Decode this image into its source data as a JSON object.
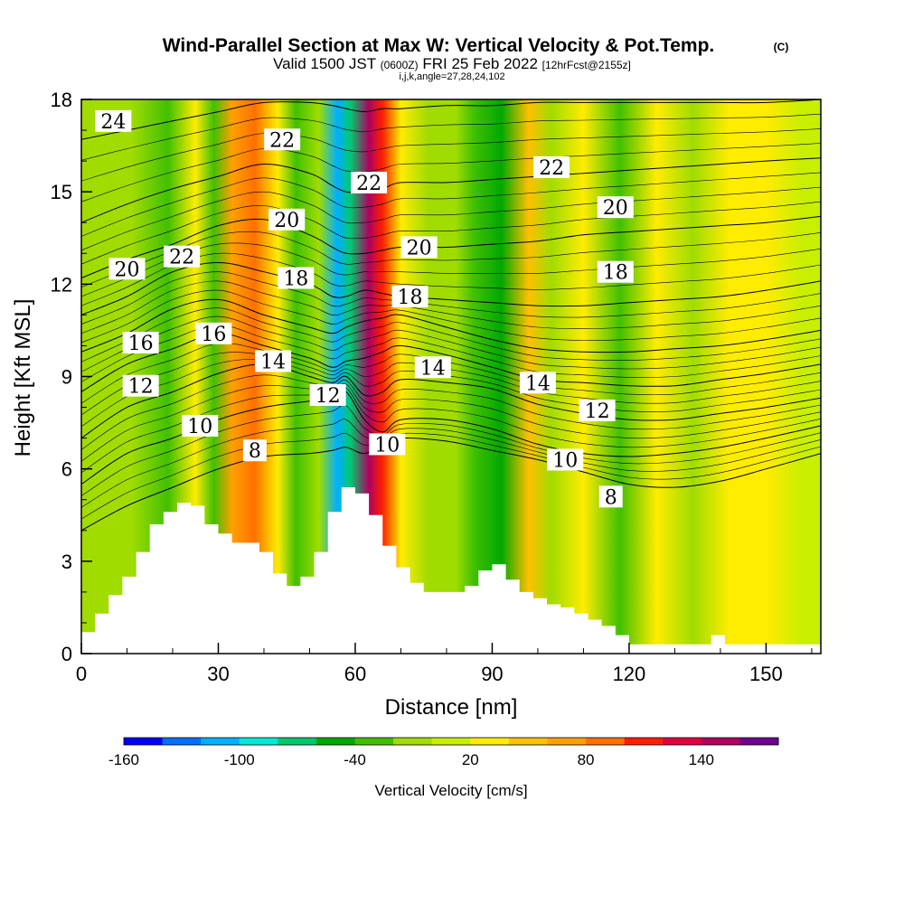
{
  "chart_data": {
    "type": "heatmap",
    "title": "Wind-Parallel Section at Max W: Vertical Velocity & Pot.Temp.",
    "title_mark": "(C)",
    "subtitle_valid": "Valid 1500 JST",
    "subtitle_zulu": "(0600Z)",
    "subtitle_date": "FRI 25 Feb 2022",
    "subtitle_fcst": "[12hrFcst@2155z]",
    "subtitle_indices": "i,j,k,angle=27,28,24,102",
    "xlabel": "Distance [nm]",
    "ylabel": "Height [Kft MSL]",
    "xlim": [
      0,
      162
    ],
    "ylim": [
      0,
      18
    ],
    "x_ticks": [
      "0",
      "30",
      "60",
      "90",
      "120",
      "150"
    ],
    "x_tick_values": [
      0,
      30,
      60,
      90,
      120,
      150
    ],
    "y_ticks": [
      "0",
      "3",
      "6",
      "9",
      "12",
      "15",
      "18"
    ],
    "y_tick_values": [
      0,
      3,
      6,
      9,
      12,
      15,
      18
    ],
    "colorbar": {
      "label": "Vertical Velocity [cm/s]",
      "tick_labels": [
        "-160",
        "-100",
        "-40",
        "20",
        "80",
        "140"
      ],
      "tick_values": [
        -160,
        -100,
        -40,
        20,
        80,
        140
      ],
      "bins": [
        -160,
        -140,
        -120,
        -100,
        -80,
        -60,
        -40,
        -20,
        0,
        20,
        40,
        60,
        80,
        100,
        120,
        140,
        160
      ],
      "colors": [
        "#0000ff",
        "#0070ff",
        "#00b0ff",
        "#00e8d8",
        "#00c86c",
        "#00a800",
        "#40c000",
        "#a0dc00",
        "#c8ee00",
        "#ffec00",
        "#ffc000",
        "#ffa000",
        "#ff7000",
        "#ff2000",
        "#e00040",
        "#b00060",
        "#700090"
      ]
    },
    "vertical_velocity_bands": [
      {
        "x": 3,
        "w": -5
      },
      {
        "x": 11,
        "w": -5
      },
      {
        "x": 19,
        "w": -40
      },
      {
        "x": 25,
        "w": 35
      },
      {
        "x": 29,
        "w": -40
      },
      {
        "x": 33,
        "w": 70
      },
      {
        "x": 38,
        "w": 90
      },
      {
        "x": 43,
        "w": 30
      },
      {
        "x": 47,
        "w": -30
      },
      {
        "x": 52,
        "w": -10
      },
      {
        "x": 56,
        "w": -120
      },
      {
        "x": 59,
        "w": -70
      },
      {
        "x": 63,
        "w": 150
      },
      {
        "x": 66,
        "w": 100
      },
      {
        "x": 70,
        "w": 30
      },
      {
        "x": 76,
        "w": -20
      },
      {
        "x": 82,
        "w": -20
      },
      {
        "x": 86,
        "w": -35
      },
      {
        "x": 92,
        "w": -60
      },
      {
        "x": 98,
        "w": 55
      },
      {
        "x": 103,
        "w": -20
      },
      {
        "x": 110,
        "w": 25
      },
      {
        "x": 118,
        "w": -40
      },
      {
        "x": 126,
        "w": 20
      },
      {
        "x": 134,
        "w": -5
      },
      {
        "x": 142,
        "w": 25
      },
      {
        "x": 150,
        "w": 20
      },
      {
        "x": 158,
        "w": 15
      }
    ],
    "terrain": {
      "x": [
        0,
        3,
        6,
        9,
        12,
        15,
        18,
        21,
        24,
        27,
        30,
        33,
        36,
        39,
        42,
        45,
        48,
        51,
        54,
        57,
        60,
        63,
        66,
        69,
        72,
        75,
        78,
        81,
        84,
        87,
        90,
        93,
        96,
        99,
        102,
        105,
        108,
        111,
        114,
        117,
        120,
        123,
        126,
        129,
        132,
        135,
        138,
        141,
        144,
        147,
        150,
        153,
        156,
        159,
        162
      ],
      "y": [
        0.7,
        1.3,
        1.9,
        2.5,
        3.3,
        4.2,
        4.6,
        4.9,
        4.8,
        4.2,
        3.9,
        3.6,
        3.6,
        3.3,
        2.6,
        2.2,
        2.5,
        3.3,
        4.6,
        5.4,
        5.2,
        4.5,
        3.5,
        2.8,
        2.3,
        2.0,
        2.0,
        2.0,
        2.2,
        2.7,
        2.9,
        2.4,
        2.0,
        1.8,
        1.6,
        1.5,
        1.3,
        1.1,
        0.9,
        0.6,
        0.3,
        0.3,
        0.3,
        0.3,
        0.3,
        0.3,
        0.6,
        0.3,
        0.3,
        0.3,
        0.3,
        0.3,
        0.3,
        0.3,
        0.3
      ]
    },
    "theta_contours": {
      "x": [
        0,
        10,
        20,
        30,
        40,
        50,
        55,
        58,
        62,
        66,
        70,
        80,
        90,
        100,
        110,
        120,
        130,
        140,
        150,
        162
      ],
      "lines": [
        {
          "label": "8",
          "label_at": [
            [
              38,
              6.6
            ],
            [
              116,
              5.1
            ]
          ],
          "y": [
            4.0,
            4.8,
            5.4,
            6.0,
            6.4,
            6.5,
            6.6,
            6.7,
            6.5,
            6.8,
            7.0,
            6.9,
            6.6,
            6.3,
            5.9,
            5.5,
            5.4,
            5.6,
            6.0,
            6.5
          ]
        },
        {
          "label": "10",
          "label_at": [
            [
              26,
              7.4
            ],
            [
              67,
              6.8
            ],
            [
              106,
              6.3
            ]
          ],
          "y": [
            5.5,
            6.5,
            7.0,
            7.6,
            8.0,
            8.2,
            8.3,
            8.5,
            7.6,
            7.2,
            7.6,
            7.6,
            7.3,
            6.8,
            6.5,
            6.4,
            6.5,
            6.7,
            7.0,
            7.4
          ]
        },
        {
          "label": "12",
          "label_at": [
            [
              13,
              8.7
            ],
            [
              54,
              8.4
            ],
            [
              113,
              7.9
            ]
          ],
          "y": [
            7.0,
            8.0,
            8.5,
            9.1,
            9.4,
            9.0,
            8.8,
            9.0,
            8.4,
            8.5,
            8.9,
            8.8,
            8.6,
            8.1,
            7.8,
            7.6,
            7.6,
            7.8,
            8.0,
            8.3
          ]
        },
        {
          "label": "14",
          "label_at": [
            [
              42,
              9.5
            ],
            [
              77,
              9.3
            ],
            [
              100,
              8.8
            ]
          ],
          "y": [
            8.5,
            9.4,
            9.9,
            10.4,
            10.0,
            9.6,
            9.3,
            9.5,
            9.6,
            9.8,
            10.0,
            9.7,
            9.3,
            8.9,
            8.8,
            8.7,
            8.7,
            8.9,
            9.1,
            9.4
          ]
        },
        {
          "label": "16",
          "label_at": [
            [
              13,
              10.1
            ],
            [
              29,
              10.4
            ]
          ],
          "y": [
            9.8,
            10.4,
            11.2,
            11.5,
            11.0,
            10.6,
            10.4,
            10.6,
            10.8,
            10.9,
            11.0,
            10.6,
            10.2,
            9.9,
            9.8,
            9.8,
            9.9,
            10.0,
            10.2,
            10.5
          ]
        },
        {
          "label": "18",
          "label_at": [
            [
              47,
              12.2
            ],
            [
              72,
              11.6
            ],
            [
              117,
              12.4
            ]
          ],
          "y": [
            11.0,
            11.6,
            12.4,
            12.7,
            12.4,
            12.0,
            11.6,
            11.6,
            11.8,
            11.7,
            11.6,
            11.5,
            11.4,
            11.3,
            11.3,
            11.4,
            11.5,
            11.6,
            11.8,
            12.1
          ]
        },
        {
          "label": "20",
          "label_at": [
            [
              10,
              12.5
            ],
            [
              45,
              14.1
            ],
            [
              74,
              13.2
            ],
            [
              117,
              14.5
            ]
          ],
          "y": [
            12.2,
            12.8,
            13.3,
            13.9,
            14.1,
            13.6,
            13.2,
            13.0,
            13.0,
            13.1,
            13.2,
            13.2,
            13.3,
            13.4,
            13.6,
            13.7,
            13.8,
            13.9,
            14.0,
            14.2
          ]
        },
        {
          "label": "22",
          "label_at": [
            [
              22,
              12.9
            ],
            [
              44,
              16.7
            ],
            [
              63,
              15.3
            ],
            [
              103,
              15.8
            ]
          ],
          "y": [
            14.0,
            14.6,
            15.1,
            15.5,
            15.9,
            15.6,
            15.2,
            15.0,
            15.0,
            15.1,
            15.3,
            15.3,
            15.4,
            15.5,
            15.6,
            15.7,
            15.8,
            15.9,
            16.0,
            16.1
          ]
        },
        {
          "label": "24",
          "label_at": [
            [
              7,
              17.3
            ]
          ],
          "y": [
            16.7,
            17.0,
            17.3,
            17.6,
            17.9,
            17.9,
            17.8,
            17.7,
            17.6,
            17.7,
            17.7,
            17.8,
            17.8,
            17.9,
            17.9,
            17.9,
            17.9,
            17.9,
            17.9,
            18.0
          ]
        }
      ]
    }
  }
}
